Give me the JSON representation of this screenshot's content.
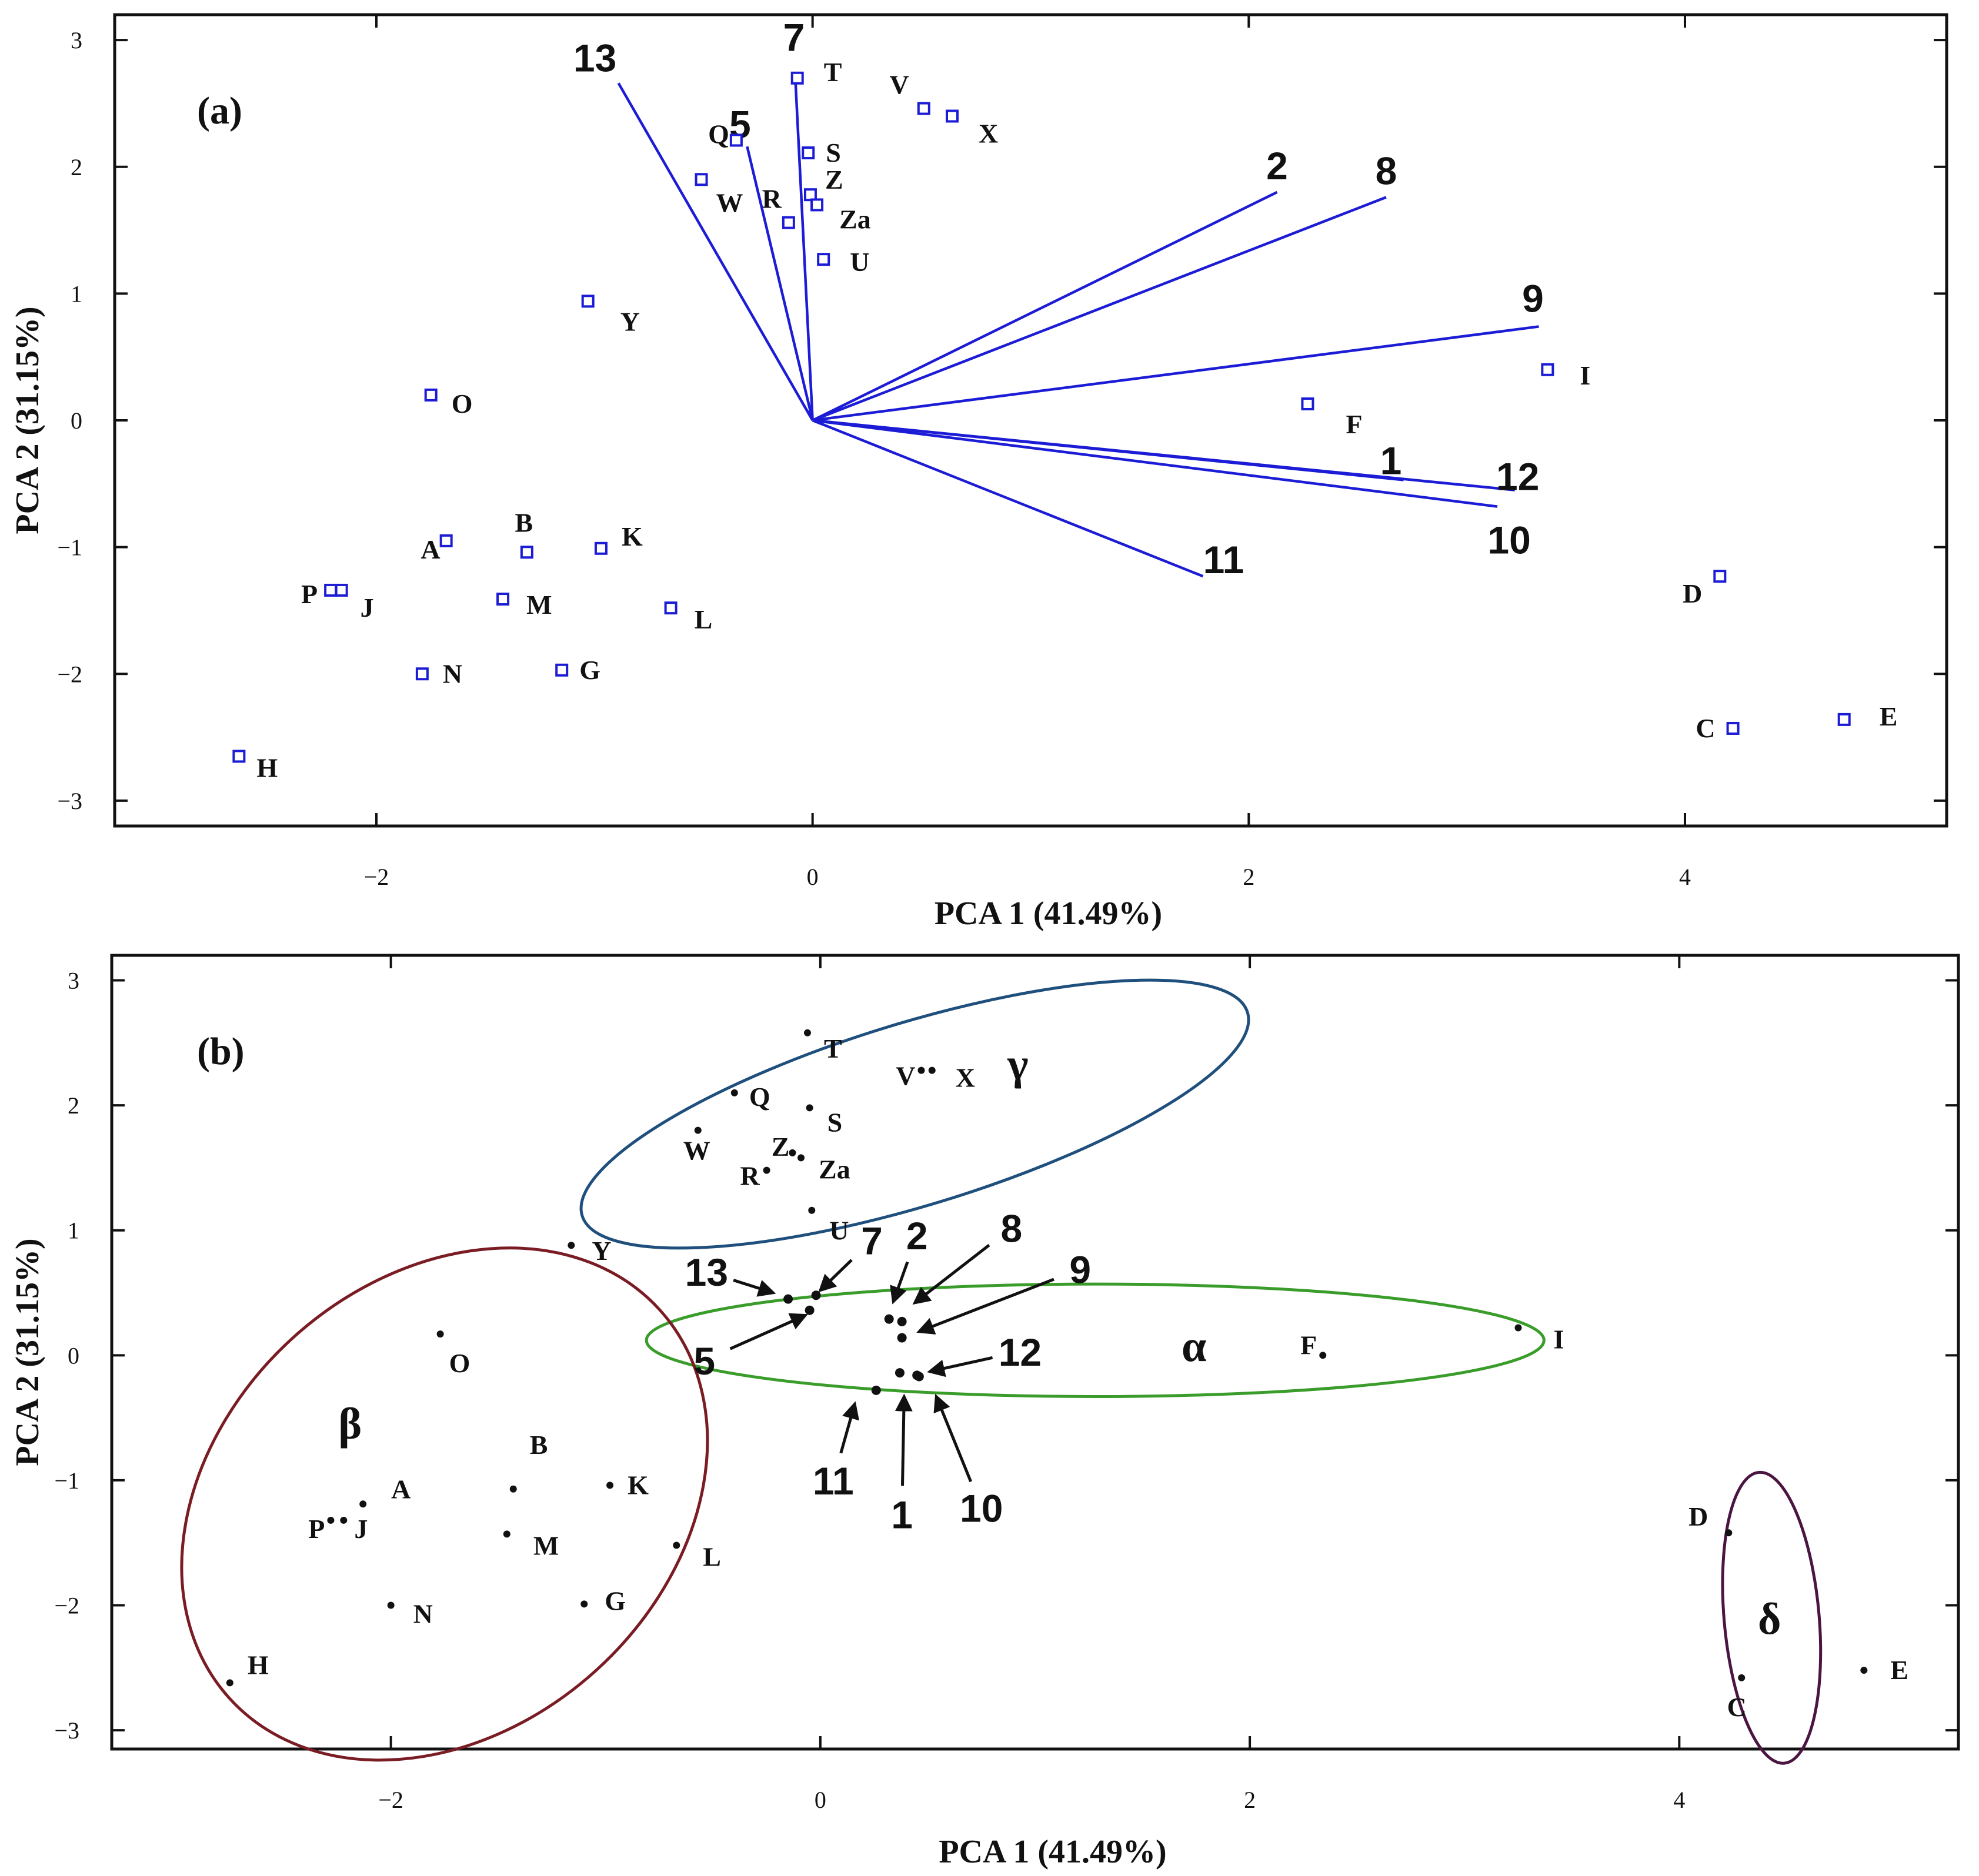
{
  "chart_data": [
    {
      "panel": "(a)",
      "type": "scatter",
      "subtype": "biplot",
      "xlabel": "PCA 1 (41.49%)",
      "ylabel": "PCA 2 (31.15%)",
      "xlim": [
        -3.2,
        5.2
      ],
      "ylim": [
        -3.2,
        3.2
      ],
      "xticks": [
        -2,
        0,
        2,
        4
      ],
      "xtick_labels": [
        "−2",
        "0",
        "2",
        "4"
      ],
      "yticks": [
        -3,
        -2,
        -1,
        0,
        1,
        2,
        3
      ],
      "ytick_labels": [
        "−3",
        "−2",
        "−1",
        "0",
        "1",
        "2",
        "3"
      ],
      "marker_color": "#1c1cd6",
      "vector_color": "#1c1cd6",
      "points": [
        {
          "label": "T",
          "x": -0.07,
          "y": 2.7
        },
        {
          "label": "V",
          "x": 0.51,
          "y": 2.46
        },
        {
          "label": "X",
          "x": 0.64,
          "y": 2.4
        },
        {
          "label": "Q",
          "x": -0.35,
          "y": 2.21
        },
        {
          "label": "S",
          "x": -0.02,
          "y": 2.11
        },
        {
          "label": "W",
          "x": -0.51,
          "y": 1.9
        },
        {
          "label": "Z",
          "x": -0.01,
          "y": 1.78
        },
        {
          "label": "R",
          "x": -0.11,
          "y": 1.56
        },
        {
          "label": "Za",
          "x": 0.02,
          "y": 1.7
        },
        {
          "label": "U",
          "x": 0.05,
          "y": 1.27
        },
        {
          "label": "Y",
          "x": -1.03,
          "y": 0.94
        },
        {
          "label": "O",
          "x": -1.75,
          "y": 0.2
        },
        {
          "label": "F",
          "x": 2.27,
          "y": 0.13
        },
        {
          "label": "I",
          "x": 3.37,
          "y": 0.4
        },
        {
          "label": "A",
          "x": -1.68,
          "y": -0.95
        },
        {
          "label": "B",
          "x": -1.31,
          "y": -1.04
        },
        {
          "label": "K",
          "x": -0.97,
          "y": -1.01
        },
        {
          "label": "P",
          "x": -2.21,
          "y": -1.34
        },
        {
          "label": "J",
          "x": -2.16,
          "y": -1.34
        },
        {
          "label": "M",
          "x": -1.42,
          "y": -1.41
        },
        {
          "label": "L",
          "x": -0.65,
          "y": -1.48
        },
        {
          "label": "N",
          "x": -1.79,
          "y": -2.0
        },
        {
          "label": "G",
          "x": -1.15,
          "y": -1.97
        },
        {
          "label": "H",
          "x": -2.63,
          "y": -2.65
        },
        {
          "label": "D",
          "x": 4.16,
          "y": -1.23
        },
        {
          "label": "C",
          "x": 4.22,
          "y": -2.43
        },
        {
          "label": "E",
          "x": 4.73,
          "y": -2.36
        }
      ],
      "vectors": [
        {
          "label": "13",
          "x": -0.89,
          "y": 2.66
        },
        {
          "label": "7",
          "x": -0.08,
          "y": 2.73
        },
        {
          "label": "5",
          "x": -0.3,
          "y": 2.16
        },
        {
          "label": "2",
          "x": 2.13,
          "y": 1.8
        },
        {
          "label": "8",
          "x": 2.63,
          "y": 1.76
        },
        {
          "label": "9",
          "x": 3.33,
          "y": 0.74
        },
        {
          "label": "1",
          "x": 2.71,
          "y": -0.47
        },
        {
          "label": "12",
          "x": 3.22,
          "y": -0.55
        },
        {
          "label": "10",
          "x": 3.14,
          "y": -0.68
        },
        {
          "label": "11",
          "x": 1.79,
          "y": -1.23
        }
      ]
    },
    {
      "panel": "(b)",
      "type": "scatter",
      "subtype": "cluster plot",
      "xlabel": "PCA 1 (41.49%)",
      "ylabel": "PCA 2 (31.15%)",
      "xlim": [
        -3.3,
        5.3
      ],
      "ylim": [
        -3.15,
        3.2
      ],
      "xticks": [
        -2,
        0,
        2,
        4
      ],
      "xtick_labels": [
        "−2",
        "0",
        "2",
        "4"
      ],
      "yticks": [
        -3,
        -2,
        -1,
        0,
        1,
        2,
        3
      ],
      "ytick_labels": [
        "−3",
        "−2",
        "−1",
        "0",
        "1",
        "2",
        "3"
      ],
      "marker_color": "#111111",
      "points": [
        {
          "label": "T",
          "x": -0.06,
          "y": 2.58
        },
        {
          "label": "V",
          "x": 0.47,
          "y": 2.28
        },
        {
          "label": "X",
          "x": 0.52,
          "y": 2.28
        },
        {
          "label": "Q",
          "x": -0.4,
          "y": 2.1
        },
        {
          "label": "S",
          "x": -0.05,
          "y": 1.98
        },
        {
          "label": "W",
          "x": -0.57,
          "y": 1.8
        },
        {
          "label": "Z",
          "x": -0.13,
          "y": 1.62
        },
        {
          "label": "Za",
          "x": -0.09,
          "y": 1.58
        },
        {
          "label": "R",
          "x": -0.25,
          "y": 1.48
        },
        {
          "label": "U",
          "x": -0.04,
          "y": 1.16
        },
        {
          "label": "Y",
          "x": -1.16,
          "y": 0.88
        },
        {
          "label": "O",
          "x": -1.77,
          "y": 0.17
        },
        {
          "label": "F",
          "x": 2.34,
          "y": 0.0
        },
        {
          "label": "I",
          "x": 3.25,
          "y": 0.22
        },
        {
          "label": "A",
          "x": -2.13,
          "y": -1.19
        },
        {
          "label": "B",
          "x": -1.43,
          "y": -1.07
        },
        {
          "label": "K",
          "x": -0.98,
          "y": -1.04
        },
        {
          "label": "P",
          "x": -2.28,
          "y": -1.32
        },
        {
          "label": "J",
          "x": -2.22,
          "y": -1.32
        },
        {
          "label": "M",
          "x": -1.46,
          "y": -1.43
        },
        {
          "label": "L",
          "x": -0.67,
          "y": -1.52
        },
        {
          "label": "N",
          "x": -2.0,
          "y": -2.0
        },
        {
          "label": "G",
          "x": -1.1,
          "y": -1.99
        },
        {
          "label": "H",
          "x": -2.75,
          "y": -2.62
        },
        {
          "label": "D",
          "x": 4.23,
          "y": -1.42
        },
        {
          "label": "C",
          "x": 4.29,
          "y": -2.58
        },
        {
          "label": "E",
          "x": 4.86,
          "y": -2.52
        }
      ],
      "variable_points": [
        {
          "label": "13",
          "x": -0.15,
          "y": 0.45
        },
        {
          "label": "7",
          "x": -0.02,
          "y": 0.48
        },
        {
          "label": "5",
          "x": -0.05,
          "y": 0.36
        },
        {
          "label": "2",
          "x": 0.32,
          "y": 0.29
        },
        {
          "label": "8",
          "x": 0.38,
          "y": 0.27
        },
        {
          "label": "9",
          "x": 0.38,
          "y": 0.14
        },
        {
          "label": "12",
          "x": 0.45,
          "y": -0.16
        },
        {
          "label": "1",
          "x": 0.37,
          "y": -0.14
        },
        {
          "label": "10",
          "x": 0.46,
          "y": -0.17
        },
        {
          "label": "11",
          "x": 0.26,
          "y": -0.28
        }
      ],
      "arrow_labels": [
        {
          "label": "13",
          "x": -0.53,
          "y": 0.67,
          "tx": -0.22,
          "ty": 0.5
        },
        {
          "label": "7",
          "x": 0.24,
          "y": 0.92,
          "tx": 0.0,
          "ty": 0.52
        },
        {
          "label": "2",
          "x": 0.45,
          "y": 0.96,
          "tx": 0.34,
          "ty": 0.43
        },
        {
          "label": "8",
          "x": 0.89,
          "y": 1.02,
          "tx": 0.44,
          "ty": 0.42
        },
        {
          "label": "9",
          "x": 1.21,
          "y": 0.69,
          "tx": 0.46,
          "ty": 0.19
        },
        {
          "label": "5",
          "x": -0.54,
          "y": -0.04,
          "tx": -0.07,
          "ty": 0.32
        },
        {
          "label": "12",
          "x": 0.93,
          "y": 0.03,
          "tx": 0.51,
          "ty": -0.13
        },
        {
          "label": "11",
          "x": 0.06,
          "y": -1.0,
          "tx": 0.16,
          "ty": -0.39
        },
        {
          "label": "1",
          "x": 0.38,
          "y": -1.27,
          "tx": 0.39,
          "ty": -0.33
        },
        {
          "label": "10",
          "x": 0.75,
          "y": -1.22,
          "tx": 0.54,
          "ty": -0.33
        }
      ],
      "clusters": [
        {
          "label": "α",
          "color": "#3a9c2a",
          "cx": 1.28,
          "cy": 0.12,
          "rx": 2.09,
          "ry": 0.45,
          "angle": 0,
          "label_x": 1.74,
          "label_y": 0.07
        },
        {
          "label": "β",
          "color": "#7a1c24",
          "cx": -1.75,
          "cy": -1.19,
          "rx": 1.35,
          "ry": 1.8,
          "angle": 42,
          "label_x": -2.19,
          "label_y": -0.55
        },
        {
          "label": "γ",
          "color": "#1f4f7c",
          "cx": 0.44,
          "cy": 1.93,
          "rx": 1.62,
          "ry": 0.73,
          "angle": 17,
          "label_x": 0.92,
          "label_y": 2.33
        },
        {
          "label": "δ",
          "color": "#4a1540",
          "cx": 4.43,
          "cy": -2.1,
          "rx": 0.68,
          "ry": 0.38,
          "angle": 95,
          "label_x": 4.42,
          "label_y": -2.11
        }
      ]
    }
  ]
}
